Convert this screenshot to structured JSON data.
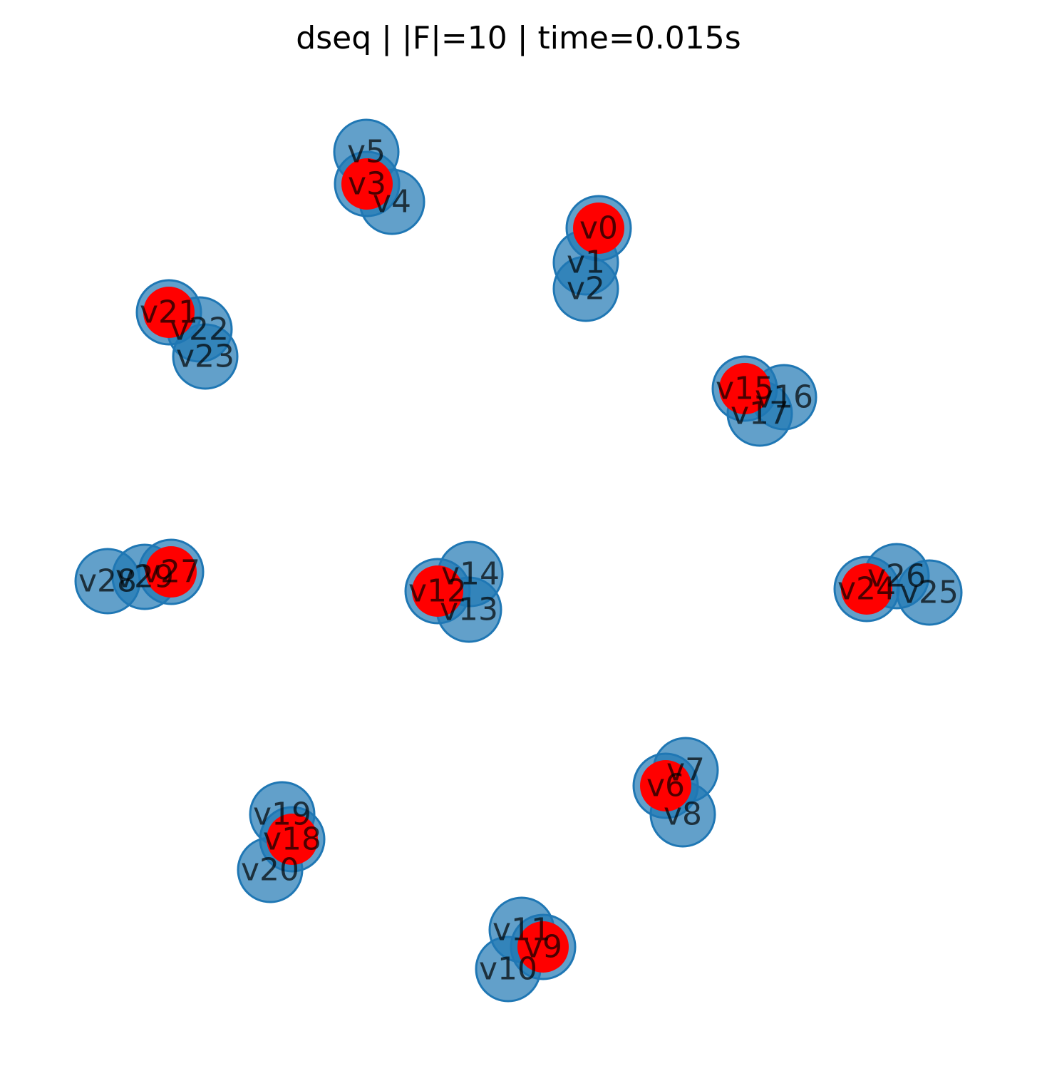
{
  "title": "dseq | |F|=10 | time=0.015s",
  "colors": {
    "base": "#1f77b4",
    "highlight": "#ff0000"
  },
  "nodes": [
    {
      "id": "v0",
      "highlighted": true
    },
    {
      "id": "v1",
      "highlighted": false
    },
    {
      "id": "v2",
      "highlighted": false
    },
    {
      "id": "v3",
      "highlighted": true
    },
    {
      "id": "v4",
      "highlighted": false
    },
    {
      "id": "v5",
      "highlighted": false
    },
    {
      "id": "v6",
      "highlighted": true
    },
    {
      "id": "v7",
      "highlighted": false
    },
    {
      "id": "v8",
      "highlighted": false
    },
    {
      "id": "v9",
      "highlighted": true
    },
    {
      "id": "v10",
      "highlighted": false
    },
    {
      "id": "v11",
      "highlighted": false
    },
    {
      "id": "v12",
      "highlighted": true
    },
    {
      "id": "v13",
      "highlighted": false
    },
    {
      "id": "v14",
      "highlighted": false
    },
    {
      "id": "v15",
      "highlighted": true
    },
    {
      "id": "v16",
      "highlighted": false
    },
    {
      "id": "v17",
      "highlighted": false
    },
    {
      "id": "v18",
      "highlighted": true
    },
    {
      "id": "v19",
      "highlighted": false
    },
    {
      "id": "v20",
      "highlighted": false
    },
    {
      "id": "v21",
      "highlighted": true
    },
    {
      "id": "v22",
      "highlighted": false
    },
    {
      "id": "v23",
      "highlighted": false
    },
    {
      "id": "v24",
      "highlighted": true
    },
    {
      "id": "v25",
      "highlighted": false
    },
    {
      "id": "v26",
      "highlighted": false
    },
    {
      "id": "v27",
      "highlighted": true
    },
    {
      "id": "v28",
      "highlighted": false
    },
    {
      "id": "v29",
      "highlighted": false
    }
  ]
}
